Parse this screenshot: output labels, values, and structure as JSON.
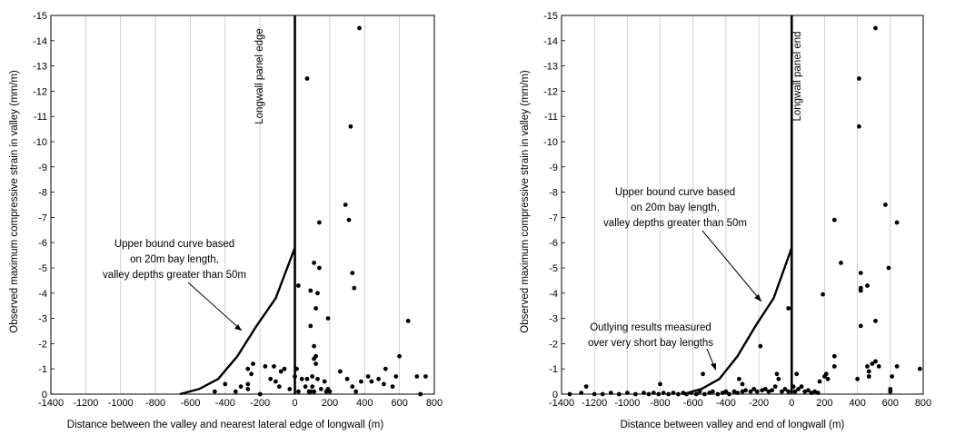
{
  "chart_data": [
    {
      "type": "scatter",
      "xlabel": "Distance between the valley and nearest lateral edge of longwall  (m)",
      "ylabel": "Observed maximum compressive strain in valley (mm/m)",
      "xlim": [
        -1400,
        800
      ],
      "ylim": [
        0,
        -15
      ],
      "x_ticks": [
        "-1400",
        "-1200",
        "-1000",
        "-800",
        "-600",
        "-400",
        "-200",
        "0",
        "200",
        "400",
        "600",
        "800"
      ],
      "y_ticks": [
        "0",
        "-1",
        "-2",
        "-3",
        "-4",
        "-5",
        "-6",
        "-7",
        "-8",
        "-9",
        "-10",
        "-11",
        "-12",
        "-13",
        "-14",
        "-15"
      ],
      "grid": true,
      "vertical_line": {
        "x": 0,
        "label": "Longwall  panel  edge"
      },
      "curve": {
        "x": [
          -660,
          -550,
          -440,
          -330,
          -220,
          -110,
          0
        ],
        "y": [
          0,
          -0.2,
          -0.6,
          -1.5,
          -2.7,
          -3.8,
          -5.8
        ]
      },
      "annotations": [
        {
          "lines": [
            "Upper bound curve based",
            "on 20m bay length,",
            "valley depths greater than 50m"
          ]
        }
      ],
      "points": [
        [
          370,
          -14.5
        ],
        [
          70,
          -12.5
        ],
        [
          320,
          -10.6
        ],
        [
          290,
          -7.5
        ],
        [
          310,
          -6.9
        ],
        [
          140,
          -6.8
        ],
        [
          110,
          -5.2
        ],
        [
          140,
          -5.0
        ],
        [
          330,
          -4.8
        ],
        [
          20,
          -4.3
        ],
        [
          90,
          -4.1
        ],
        [
          130,
          -4.0
        ],
        [
          340,
          -4.2
        ],
        [
          90,
          -2.7
        ],
        [
          120,
          -3.4
        ],
        [
          190,
          -3.0
        ],
        [
          650,
          -2.9
        ],
        [
          110,
          -1.9
        ],
        [
          110,
          -1.4
        ],
        [
          120,
          -1.5
        ],
        [
          120,
          -1.2
        ],
        [
          600,
          -1.5
        ],
        [
          520,
          -1.0
        ],
        [
          -270,
          -1.0
        ],
        [
          -240,
          -1.2
        ],
        [
          -170,
          -1.1
        ],
        [
          -120,
          -1.1
        ],
        [
          -80,
          -0.9
        ],
        [
          -60,
          -1.0
        ],
        [
          10,
          -1.0
        ],
        [
          40,
          -0.6
        ],
        [
          0,
          -0.7
        ],
        [
          -310,
          -0.3
        ],
        [
          -340,
          -0.1
        ],
        [
          -400,
          -0.4
        ],
        [
          -460,
          -0.1
        ],
        [
          -270,
          -0.4
        ],
        [
          -270,
          -0.2
        ],
        [
          -250,
          -0.8
        ],
        [
          -140,
          -0.6
        ],
        [
          -110,
          -0.5
        ],
        [
          -90,
          -0.3
        ],
        [
          -30,
          -0.2
        ],
        [
          20,
          -0.1
        ],
        [
          60,
          -0.3
        ],
        [
          70,
          -0.6
        ],
        [
          80,
          -0.1
        ],
        [
          90,
          -0.1
        ],
        [
          100,
          -0.3
        ],
        [
          110,
          -0.1
        ],
        [
          130,
          -0.6
        ],
        [
          150,
          -0.2
        ],
        [
          170,
          -0.5
        ],
        [
          180,
          -0.1
        ],
        [
          190,
          -0.2
        ],
        [
          260,
          -0.9
        ],
        [
          300,
          -0.6
        ],
        [
          330,
          -0.3
        ],
        [
          350,
          -0.1
        ],
        [
          380,
          -0.5
        ],
        [
          420,
          -0.7
        ],
        [
          440,
          -0.5
        ],
        [
          480,
          -0.6
        ],
        [
          510,
          -0.4
        ],
        [
          560,
          -0.3
        ],
        [
          580,
          -0.7
        ],
        [
          700,
          -0.7
        ],
        [
          750,
          -0.7
        ],
        [
          720,
          0.0
        ],
        [
          100,
          -0.7
        ],
        [
          200,
          -0.1
        ],
        [
          -200,
          0.0
        ]
      ]
    },
    {
      "type": "scatter",
      "xlabel": "Distance between valley and end of longwall  (m)",
      "ylabel": "Observed maximum compressive strain in valley (mm/m)",
      "xlim": [
        -1400,
        800
      ],
      "ylim": [
        0,
        -15
      ],
      "x_ticks": [
        "-1400",
        "-1200",
        "-1000",
        "-800",
        "-600",
        "-400",
        "-200",
        "0",
        "200",
        "400",
        "600",
        "800"
      ],
      "y_ticks": [
        "0",
        "-1",
        "-2",
        "-3",
        "-4",
        "-5",
        "-6",
        "-7",
        "-8",
        "-9",
        "-10",
        "-11",
        "-12",
        "-13",
        "-14",
        "-15"
      ],
      "grid": true,
      "vertical_line": {
        "x": 0,
        "label": "Longwall  panel  end"
      },
      "curve": {
        "x": [
          -660,
          -550,
          -440,
          -330,
          -220,
          -110,
          0
        ],
        "y": [
          0,
          -0.2,
          -0.6,
          -1.5,
          -2.7,
          -3.8,
          -5.8
        ]
      },
      "annotations": [
        {
          "lines": [
            "Upper bound curve based",
            "on 20m bay length,",
            "valley depths greater than 50m"
          ]
        },
        {
          "lines": [
            "Outlying results measured",
            "over very short bay lengths"
          ]
        }
      ],
      "points": [
        [
          510,
          -14.5
        ],
        [
          410,
          -12.5
        ],
        [
          410,
          -10.6
        ],
        [
          570,
          -7.5
        ],
        [
          260,
          -6.9
        ],
        [
          640,
          -6.8
        ],
        [
          300,
          -5.2
        ],
        [
          590,
          -5.0
        ],
        [
          420,
          -4.8
        ],
        [
          460,
          -4.3
        ],
        [
          420,
          -4.2
        ],
        [
          420,
          -4.1
        ],
        [
          190,
          -3.95
        ],
        [
          -20,
          -3.4
        ],
        [
          510,
          -2.9
        ],
        [
          420,
          -2.7
        ],
        [
          -190,
          -1.9
        ],
        [
          260,
          -1.5
        ],
        [
          510,
          -1.3
        ],
        [
          490,
          -1.2
        ],
        [
          460,
          -1.1
        ],
        [
          530,
          -1.1
        ],
        [
          640,
          -1.1
        ],
        [
          260,
          -1.1
        ],
        [
          780,
          -1.0
        ],
        [
          -540,
          -0.8
        ],
        [
          -800,
          -0.4
        ],
        [
          -1250,
          -0.3
        ],
        [
          -320,
          -0.6
        ],
        [
          -300,
          -0.4
        ],
        [
          -100,
          -0.3
        ],
        [
          -90,
          -0.8
        ],
        [
          -80,
          -0.6
        ],
        [
          210,
          -0.8
        ],
        [
          200,
          -0.7
        ],
        [
          220,
          -0.6
        ],
        [
          170,
          -0.5
        ],
        [
          400,
          -0.6
        ],
        [
          470,
          -0.7
        ],
        [
          470,
          -0.9
        ],
        [
          610,
          -0.7
        ],
        [
          600,
          -0.2
        ],
        [
          600,
          -0.1
        ],
        [
          30,
          -0.8
        ],
        [
          60,
          -0.3
        ],
        [
          10,
          -0.3
        ],
        [
          -1350,
          0.0
        ],
        [
          -1280,
          -0.05
        ],
        [
          -1200,
          0.0
        ],
        [
          -1150,
          0.0
        ],
        [
          -1100,
          -0.05
        ],
        [
          -1050,
          0.0
        ],
        [
          -1000,
          -0.05
        ],
        [
          -950,
          0.0
        ],
        [
          -900,
          -0.05
        ],
        [
          -870,
          0.0
        ],
        [
          -840,
          -0.05
        ],
        [
          -810,
          0.0
        ],
        [
          -780,
          -0.05
        ],
        [
          -750,
          0.0
        ],
        [
          -720,
          -0.05
        ],
        [
          -690,
          0.0
        ],
        [
          -660,
          -0.05
        ],
        [
          -640,
          0.0
        ],
        [
          -610,
          -0.05
        ],
        [
          -580,
          0.0
        ],
        [
          -560,
          -0.1
        ],
        [
          -530,
          0.0
        ],
        [
          -500,
          -0.05
        ],
        [
          -480,
          -0.1
        ],
        [
          -450,
          0.0
        ],
        [
          -420,
          -0.05
        ],
        [
          -400,
          -0.1
        ],
        [
          -380,
          0.0
        ],
        [
          -350,
          -0.1
        ],
        [
          -330,
          -0.05
        ],
        [
          -300,
          -0.1
        ],
        [
          -280,
          -0.15
        ],
        [
          -250,
          -0.1
        ],
        [
          -230,
          -0.2
        ],
        [
          -210,
          -0.1
        ],
        [
          -180,
          -0.15
        ],
        [
          -160,
          -0.2
        ],
        [
          -140,
          -0.1
        ],
        [
          -120,
          -0.15
        ],
        [
          -60,
          -0.1
        ],
        [
          -40,
          -0.2
        ],
        [
          -20,
          -0.1
        ],
        [
          20,
          -0.1
        ],
        [
          40,
          -0.2
        ],
        [
          80,
          -0.1
        ],
        [
          100,
          -0.15
        ],
        [
          120,
          -0.05
        ],
        [
          140,
          -0.1
        ],
        [
          160,
          -0.05
        ]
      ]
    }
  ]
}
